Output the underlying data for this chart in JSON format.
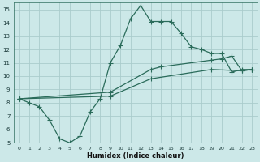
{
  "xlabel": "Humidex (Indice chaleur)",
  "bg_color": "#cce8e8",
  "grid_color": "#aacccc",
  "line_color": "#2a6b5a",
  "xlim": [
    -0.5,
    23.5
  ],
  "ylim": [
    5,
    15.5
  ],
  "xticks": [
    0,
    1,
    2,
    3,
    4,
    5,
    6,
    7,
    8,
    9,
    10,
    11,
    12,
    13,
    14,
    15,
    16,
    17,
    18,
    19,
    20,
    21,
    22,
    23
  ],
  "yticks": [
    5,
    6,
    7,
    8,
    9,
    10,
    11,
    12,
    13,
    14,
    15
  ],
  "line1_x": [
    0,
    1,
    2,
    3,
    4,
    5,
    6,
    7,
    8,
    9,
    10,
    11,
    12,
    13,
    14,
    15,
    16,
    17,
    18,
    19,
    20,
    21,
    22,
    23
  ],
  "line1_y": [
    8.3,
    8.0,
    7.7,
    6.7,
    5.3,
    5.0,
    5.5,
    7.3,
    8.3,
    11.0,
    12.3,
    14.3,
    15.3,
    14.1,
    14.1,
    14.1,
    13.2,
    12.2,
    12.0,
    11.7,
    11.7,
    10.3,
    10.5,
    10.5
  ],
  "line2_x": [
    0,
    9,
    13,
    14,
    19,
    20,
    21,
    22,
    23
  ],
  "line2_y": [
    8.3,
    8.8,
    10.5,
    10.7,
    11.2,
    11.3,
    11.5,
    10.4,
    10.5
  ],
  "line3_x": [
    0,
    9,
    13,
    19,
    22,
    23
  ],
  "line3_y": [
    8.3,
    8.5,
    9.8,
    10.5,
    10.4,
    10.5
  ],
  "marker": "+",
  "markersize": 4.0,
  "linewidth": 0.9
}
